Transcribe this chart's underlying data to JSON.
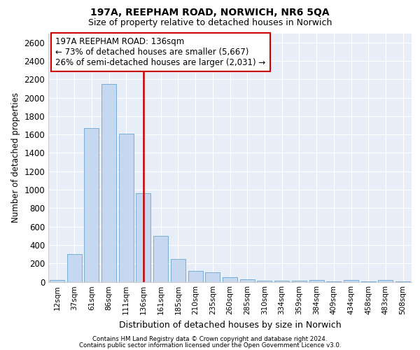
{
  "title1": "197A, REEPHAM ROAD, NORWICH, NR6 5QA",
  "title2": "Size of property relative to detached houses in Norwich",
  "xlabel": "Distribution of detached houses by size in Norwich",
  "ylabel": "Number of detached properties",
  "categories": [
    "12sqm",
    "37sqm",
    "61sqm",
    "86sqm",
    "111sqm",
    "136sqm",
    "161sqm",
    "185sqm",
    "210sqm",
    "235sqm",
    "260sqm",
    "285sqm",
    "310sqm",
    "334sqm",
    "359sqm",
    "384sqm",
    "409sqm",
    "434sqm",
    "458sqm",
    "483sqm",
    "508sqm"
  ],
  "values": [
    20,
    300,
    1670,
    2150,
    1610,
    960,
    500,
    248,
    120,
    100,
    48,
    30,
    15,
    12,
    8,
    18,
    5,
    18,
    5,
    20,
    5
  ],
  "bar_color": "#c5d8f0",
  "bar_edge_color": "#7aaed6",
  "vline_x_index": 5,
  "vline_color": "#cc0000",
  "annotation_line1": "197A REEPHAM ROAD: 136sqm",
  "annotation_line2": "← 73% of detached houses are smaller (5,667)",
  "annotation_line3": "26% of semi-detached houses are larger (2,031) →",
  "annotation_box_facecolor": "#ffffff",
  "annotation_box_edgecolor": "#cc0000",
  "ylim_max": 2700,
  "yticks": [
    0,
    200,
    400,
    600,
    800,
    1000,
    1200,
    1400,
    1600,
    1800,
    2000,
    2200,
    2400,
    2600
  ],
  "bg_color": "#e8eef8",
  "grid_color": "#ffffff",
  "footer1": "Contains HM Land Registry data © Crown copyright and database right 2024.",
  "footer2": "Contains public sector information licensed under the Open Government Licence v3.0."
}
